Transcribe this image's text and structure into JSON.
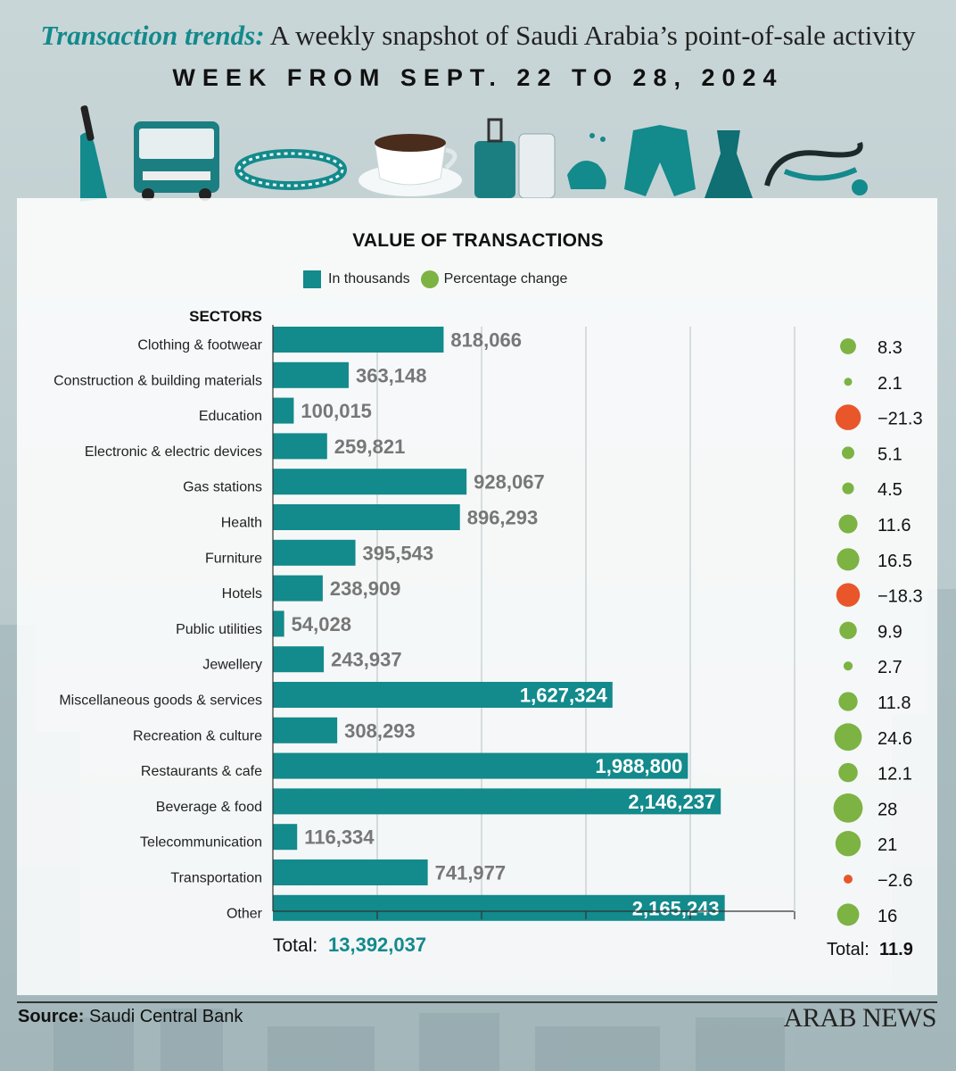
{
  "header": {
    "lead": "Transaction trends:",
    "headline": " A weekly snapshot of Saudi Arabia’s point-of-sale activity",
    "subhead": "WEEK FROM SEPT. 22 TO 28, 2024"
  },
  "legend": {
    "value_label": "In thousands",
    "change_label": "Percentage change"
  },
  "footer": {
    "source_label": "Source:",
    "source_value": " Saudi Central Bank",
    "brand": "ARAB NEWS"
  },
  "colors": {
    "bar": "#138a8c",
    "positive": "#7cb342",
    "negative": "#e8562a",
    "value_label_outside": "#777777",
    "total_value": "#138a8c"
  },
  "chart_data": {
    "type": "bar",
    "orientation": "horizontal",
    "title": "VALUE OF TRANSACTIONS",
    "category_header": "SECTORS",
    "categories": [
      "Clothing & footwear",
      "Construction & building materials",
      "Education",
      "Electronic & electric devices",
      "Gas stations",
      "Health",
      "Furniture",
      "Hotels",
      "Public utilities",
      "Jewellery",
      "Miscellaneous goods & services",
      "Recreation & culture",
      "Restaurants & cafe",
      "Beverage & food",
      "Telecommunication",
      "Transportation",
      "Other"
    ],
    "series": [
      {
        "name": "In thousands",
        "values": [
          818066,
          363148,
          100015,
          259821,
          928067,
          896293,
          395543,
          238909,
          54028,
          243937,
          1627324,
          308293,
          1988800,
          2146237,
          116334,
          741977,
          2165243
        ],
        "labels": [
          "818,066",
          "363,148",
          "100,015",
          "259,821",
          "928,067",
          "896,293",
          "395,543",
          "238,909",
          "54,028",
          "243,937",
          "1,627,324",
          "308,293",
          "1,988,800",
          "2,146,237",
          "116,334",
          "741,977",
          "2,165,243"
        ]
      },
      {
        "name": "Percentage change",
        "values": [
          8.3,
          2.1,
          -21.3,
          5.1,
          4.5,
          11.6,
          16.5,
          -18.3,
          9.9,
          2.7,
          11.8,
          24.6,
          12.1,
          28,
          21,
          -2.6,
          16
        ],
        "labels": [
          "8.3",
          "2.1",
          "−21.3",
          "5.1",
          "4.5",
          "11.6",
          "16.5",
          "−18.3",
          "9.9",
          "2.7",
          "11.8",
          "24.6",
          "12.1",
          "28",
          "21",
          "−2.6",
          "16"
        ]
      }
    ],
    "xlim": [
      0,
      2500000
    ],
    "x_gridlines": [
      500000,
      1000000,
      1500000,
      2000000,
      2500000
    ],
    "totals": {
      "value_label": "Total:",
      "value": "13,392,037",
      "change_label": "Total:",
      "change": "11.9"
    }
  }
}
